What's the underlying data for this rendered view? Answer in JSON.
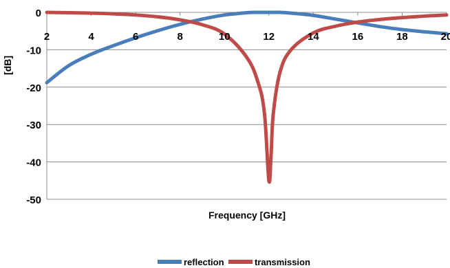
{
  "chart_data": {
    "type": "line",
    "xlabel": "Frequency [GHz]",
    "ylabel": "[dB]",
    "xlim": [
      2,
      20
    ],
    "ylim": [
      -50,
      0
    ],
    "x_ticks": [
      "2",
      "4",
      "6",
      "8",
      "10",
      "12",
      "14",
      "16",
      "18",
      "20"
    ],
    "y_ticks": [
      "0",
      "-10",
      "-20",
      "-30",
      "-40",
      "-50"
    ],
    "grid": true,
    "legend": "bottom",
    "x": [
      2,
      3,
      4,
      5,
      6,
      7,
      8,
      9,
      10,
      11,
      11.5,
      11.8,
      12,
      12.1,
      12.2,
      12.5,
      13,
      14,
      15,
      16,
      17,
      18,
      19,
      20
    ],
    "series": [
      {
        "name": "reflection",
        "color": "#4a7ebb",
        "values": [
          -18.8,
          -14.2,
          -11.2,
          -8.9,
          -6.8,
          -4.9,
          -3.2,
          -1.8,
          -0.7,
          -0.1,
          0,
          0,
          0,
          0,
          0,
          0,
          -0.2,
          -0.8,
          -1.8,
          -2.8,
          -3.8,
          -4.6,
          -5.2,
          -5.7
        ]
      },
      {
        "name": "transmission",
        "color": "#be4b48",
        "values": [
          0,
          -0.1,
          -0.2,
          -0.4,
          -0.7,
          -1.2,
          -2.0,
          -3.3,
          -5.8,
          -12.0,
          -18.5,
          -27.0,
          -45.0,
          -38.0,
          -27.0,
          -16.0,
          -10.0,
          -5.5,
          -3.7,
          -2.6,
          -1.9,
          -1.4,
          -1.0,
          -0.7
        ]
      }
    ]
  }
}
